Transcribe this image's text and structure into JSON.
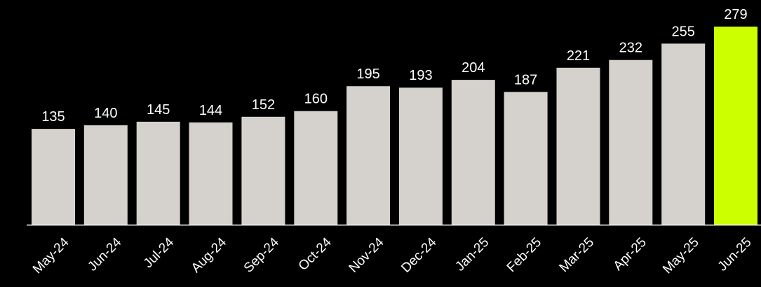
{
  "chart_data": {
    "type": "bar",
    "categories": [
      "May-24",
      "Jun-24",
      "Jul-24",
      "Aug-24",
      "Sep-24",
      "Oct-24",
      "Nov-24",
      "Dec-24",
      "Jan-25",
      "Feb-25",
      "Mar-25",
      "Apr-25",
      "May-25",
      "Jun-25"
    ],
    "values": [
      135,
      140,
      145,
      144,
      152,
      160,
      195,
      193,
      204,
      187,
      221,
      232,
      255,
      279
    ],
    "title": "",
    "xlabel": "",
    "ylabel": "",
    "ylim": [
      0,
      279
    ],
    "grid": false,
    "data_labels": true,
    "highlight_category": "Jun-25",
    "colors": {
      "background": "#000000",
      "bar": "#d5d1cc",
      "highlight": "#ccff00",
      "text": "#ffffff",
      "axis": "#ffffff"
    }
  }
}
